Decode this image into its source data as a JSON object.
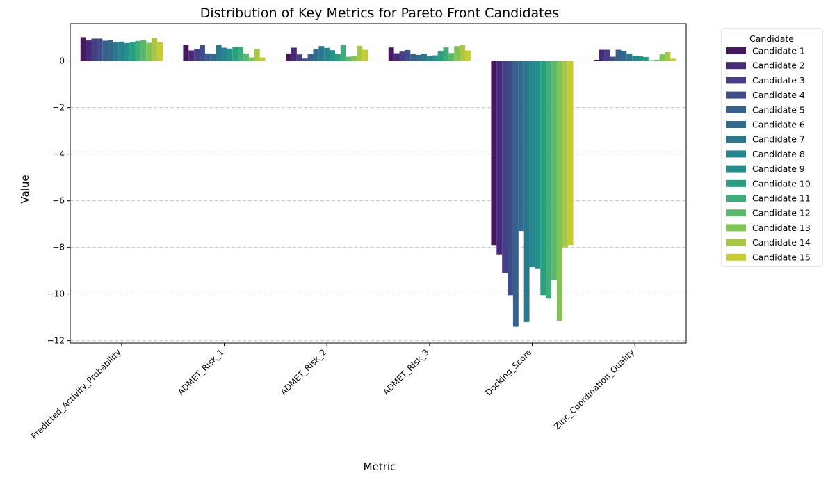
{
  "chart_data": {
    "type": "bar",
    "title": "Distribution of Key Metrics for Pareto Front Candidates",
    "xlabel": "Metric",
    "ylabel": "Value",
    "ylim": [
      -12.1,
      1.6
    ],
    "yticks": [
      0,
      -2,
      -4,
      -6,
      -8,
      -10,
      -12
    ],
    "ytick_labels": [
      "0",
      "−2",
      "−4",
      "−6",
      "−8",
      "−10",
      "−12"
    ],
    "grid": "y-dashed",
    "legend_title": "Candidate",
    "legend_placement": "outside-top-right",
    "categories": [
      "Predicted_Activity_Probability",
      "ADMET_Risk_1",
      "ADMET_Risk_2",
      "ADMET_Risk_3",
      "Docking_Score",
      "Zinc_Coordination_Quality"
    ],
    "series": [
      {
        "name": "Candidate 1",
        "color": "#46185d",
        "values": [
          1.02,
          0.68,
          0.32,
          0.58,
          -7.9,
          0.05
        ]
      },
      {
        "name": "Candidate 2",
        "color": "#482879",
        "values": [
          0.88,
          0.45,
          0.57,
          0.33,
          -8.3,
          0.48
        ]
      },
      {
        "name": "Candidate 3",
        "color": "#463e86",
        "values": [
          0.96,
          0.52,
          0.28,
          0.4,
          -9.1,
          0.48
        ]
      },
      {
        "name": "Candidate 4",
        "color": "#3f4d8a",
        "values": [
          0.96,
          0.68,
          0.1,
          0.47,
          -10.05,
          0.18
        ]
      },
      {
        "name": "Candidate 5",
        "color": "#38608c",
        "values": [
          0.87,
          0.32,
          0.3,
          0.29,
          -11.4,
          0.48
        ]
      },
      {
        "name": "Candidate 6",
        "color": "#326a8e",
        "values": [
          0.9,
          0.3,
          0.52,
          0.26,
          -7.3,
          0.43
        ]
      },
      {
        "name": "Candidate 7",
        "color": "#2a788e",
        "values": [
          0.8,
          0.7,
          0.64,
          0.31,
          -11.2,
          0.3
        ]
      },
      {
        "name": "Candidate 8",
        "color": "#26868e",
        "values": [
          0.83,
          0.57,
          0.56,
          0.2,
          -8.85,
          0.23
        ]
      },
      {
        "name": "Candidate 9",
        "color": "#24908c",
        "values": [
          0.77,
          0.53,
          0.46,
          0.24,
          -8.9,
          0.2
        ]
      },
      {
        "name": "Candidate 10",
        "color": "#27a080",
        "values": [
          0.82,
          0.6,
          0.3,
          0.41,
          -10.05,
          0.17
        ]
      },
      {
        "name": "Candidate 11",
        "color": "#3fad77",
        "values": [
          0.86,
          0.6,
          0.68,
          0.58,
          -10.2,
          0.03
        ]
      },
      {
        "name": "Candidate 12",
        "color": "#5bb769",
        "values": [
          0.9,
          0.32,
          0.18,
          0.34,
          -9.4,
          0.05
        ]
      },
      {
        "name": "Candidate 13",
        "color": "#80c455",
        "values": [
          0.78,
          0.15,
          0.22,
          0.64,
          -11.15,
          0.28
        ]
      },
      {
        "name": "Candidate 14",
        "color": "#a8c744",
        "values": [
          0.99,
          0.51,
          0.65,
          0.68,
          -8.0,
          0.38
        ]
      },
      {
        "name": "Candidate 15",
        "color": "#c7cd30",
        "values": [
          0.8,
          0.15,
          0.48,
          0.45,
          -7.9,
          0.1
        ]
      }
    ]
  }
}
